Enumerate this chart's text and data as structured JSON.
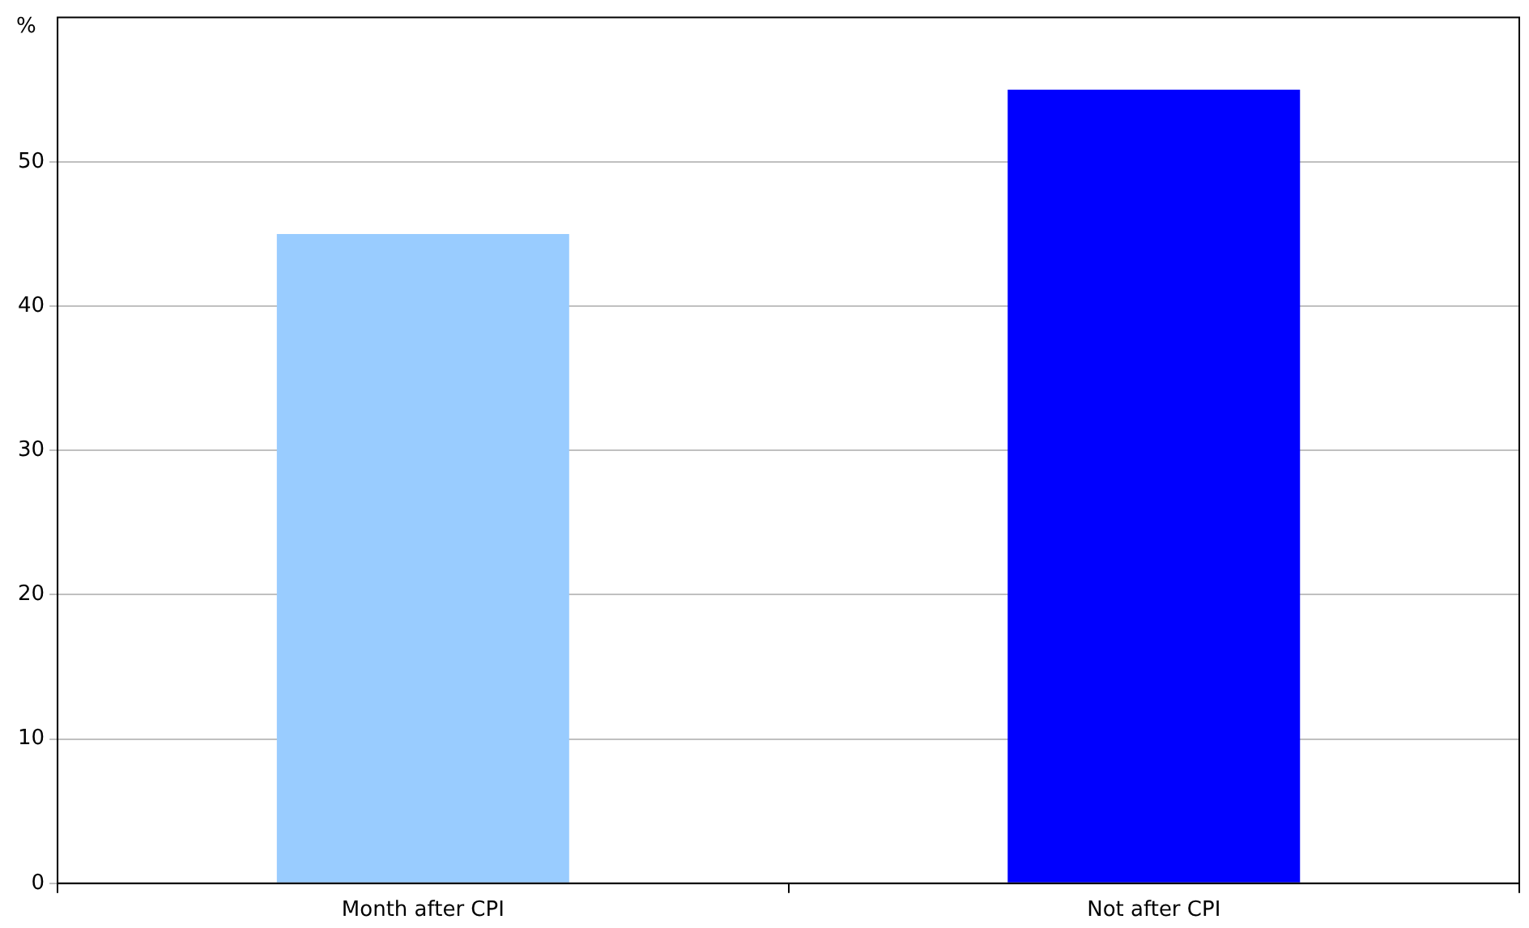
{
  "chart_data": {
    "type": "bar",
    "ylabel": "%",
    "categories": [
      "Month after CPI",
      "Not after CPI"
    ],
    "values": [
      45,
      55
    ],
    "colors": [
      "#99ccff",
      "#0000ff"
    ],
    "ylim": [
      0,
      60
    ],
    "yticks": [
      0,
      10,
      20,
      30,
      40,
      50
    ],
    "grid": "y",
    "legend": false
  }
}
